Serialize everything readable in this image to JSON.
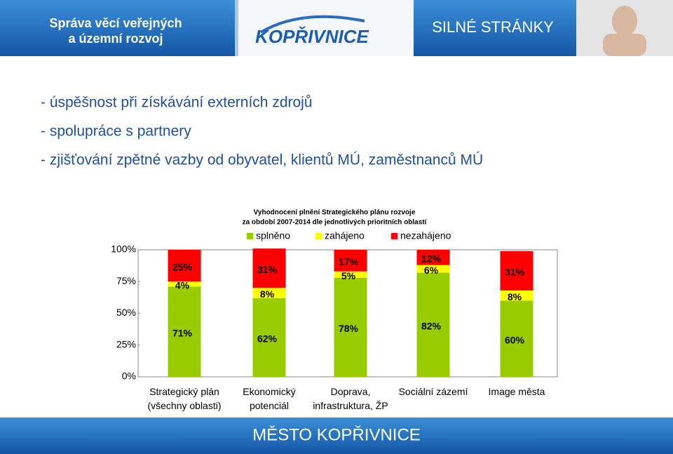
{
  "header": {
    "section": "Správa věcí veřejných\na územní rozvoj",
    "logo": "KOPŘIVNICE",
    "topic": "SILNÉ STRÁNKY"
  },
  "bullets": [
    "- úspěšnost při získávání externích zdrojů",
    "- spolupráce s partnery",
    "- zjišťování zpětné vazby od obyvatel, klientů MÚ, zaměstnanců MÚ"
  ],
  "chart_data": {
    "type": "stacked_bar",
    "title": "Vyhodnocení plnění Strategického plánu rozvoje",
    "subtitle": "za období 2007-2014 dle jednotlivých prioritních oblastí",
    "categories": [
      "Strategický plán\n(všechny oblasti)",
      "Ekonomický\npotenciál",
      "Doprava,\ninfrastruktura, ŽP",
      "Sociální zázemí",
      "Image města"
    ],
    "series": [
      {
        "name": "splněno",
        "color": "#99cc00",
        "values": [
          71,
          62,
          78,
          82,
          60
        ],
        "value_labels": [
          "71%",
          "62%",
          "78%",
          "82%",
          "60%"
        ]
      },
      {
        "name": "zahájeno",
        "color": "#ffff00",
        "values": [
          4,
          8,
          5,
          6,
          8
        ],
        "value_labels": [
          "4%",
          "8%",
          "5%",
          "6%",
          "8%"
        ]
      },
      {
        "name": "nezahájeno",
        "color": "#ff0000",
        "values": [
          25,
          31,
          17,
          12,
          31
        ],
        "value_labels": [
          "25%",
          "31%",
          "17%",
          "12%",
          "31%"
        ]
      }
    ],
    "ylim": [
      0,
      100
    ],
    "yticks": [
      {
        "value": 0,
        "label": "0%"
      },
      {
        "value": 25,
        "label": "25%"
      },
      {
        "value": 50,
        "label": "50%"
      },
      {
        "value": 75,
        "label": "75%"
      },
      {
        "value": 100,
        "label": "100%"
      }
    ],
    "legend": "top"
  },
  "footer": "MĚSTO KOPŘIVNICE"
}
